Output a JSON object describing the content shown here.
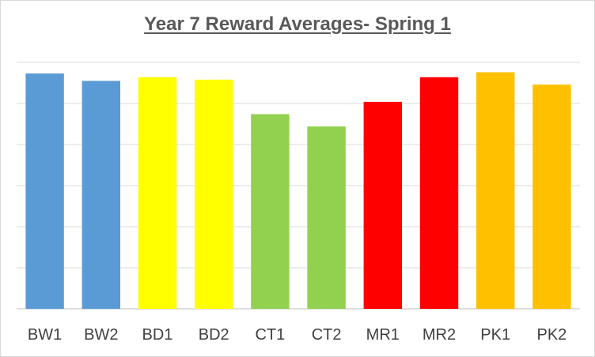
{
  "chart_data": {
    "type": "bar",
    "title": "Year 7 Reward Averages- Spring 1",
    "categories": [
      "BW1",
      "BW2",
      "BD1",
      "BD2",
      "CT1",
      "CT2",
      "MR1",
      "MR2",
      "PK1",
      "PK2"
    ],
    "values": [
      0.955,
      0.925,
      0.94,
      0.93,
      0.79,
      0.74,
      0.84,
      0.94,
      0.96,
      0.91
    ],
    "colors": [
      "#5b9bd5",
      "#5b9bd5",
      "#ffff00",
      "#ffff00",
      "#92d050",
      "#92d050",
      "#ff0000",
      "#ff0000",
      "#ffc000",
      "#ffc000"
    ],
    "ylim": [
      0,
      1
    ],
    "gridlines": 6,
    "grid": true,
    "legend": "none",
    "y_tick_labels_shown": false
  }
}
